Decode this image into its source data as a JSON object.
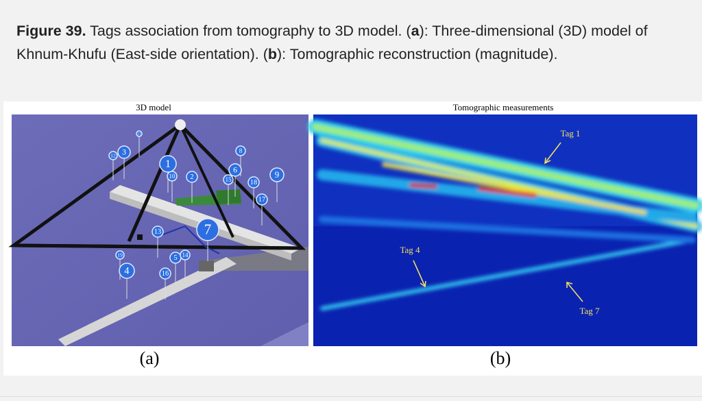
{
  "caption": {
    "parts": [
      {
        "text": "Figure 39.",
        "bold": true
      },
      {
        "text": " Tags association from tomography to 3D model. (",
        "bold": false
      },
      {
        "text": "a",
        "bold": true
      },
      {
        "text": "): Three-dimensional (3D) model of Khnum-Khufu (East-side orientation). (",
        "bold": false
      },
      {
        "text": "b",
        "bold": true
      },
      {
        "text": "): Tomographic reconstruction (magnitude).",
        "bold": false
      }
    ]
  },
  "panel_a": {
    "title": "3D model",
    "label": "(a)",
    "tags": [
      "3",
      "12",
      "11",
      "8",
      "1",
      "10",
      "2",
      "6",
      "15",
      "18",
      "9",
      "17",
      "13",
      "7",
      "19",
      "5",
      "14",
      "4",
      "16"
    ]
  },
  "panel_b": {
    "title": "Tomographic measurements",
    "label": "(b)",
    "annotations": [
      "Tag 1",
      "Tag 4",
      "Tag 7"
    ]
  }
}
